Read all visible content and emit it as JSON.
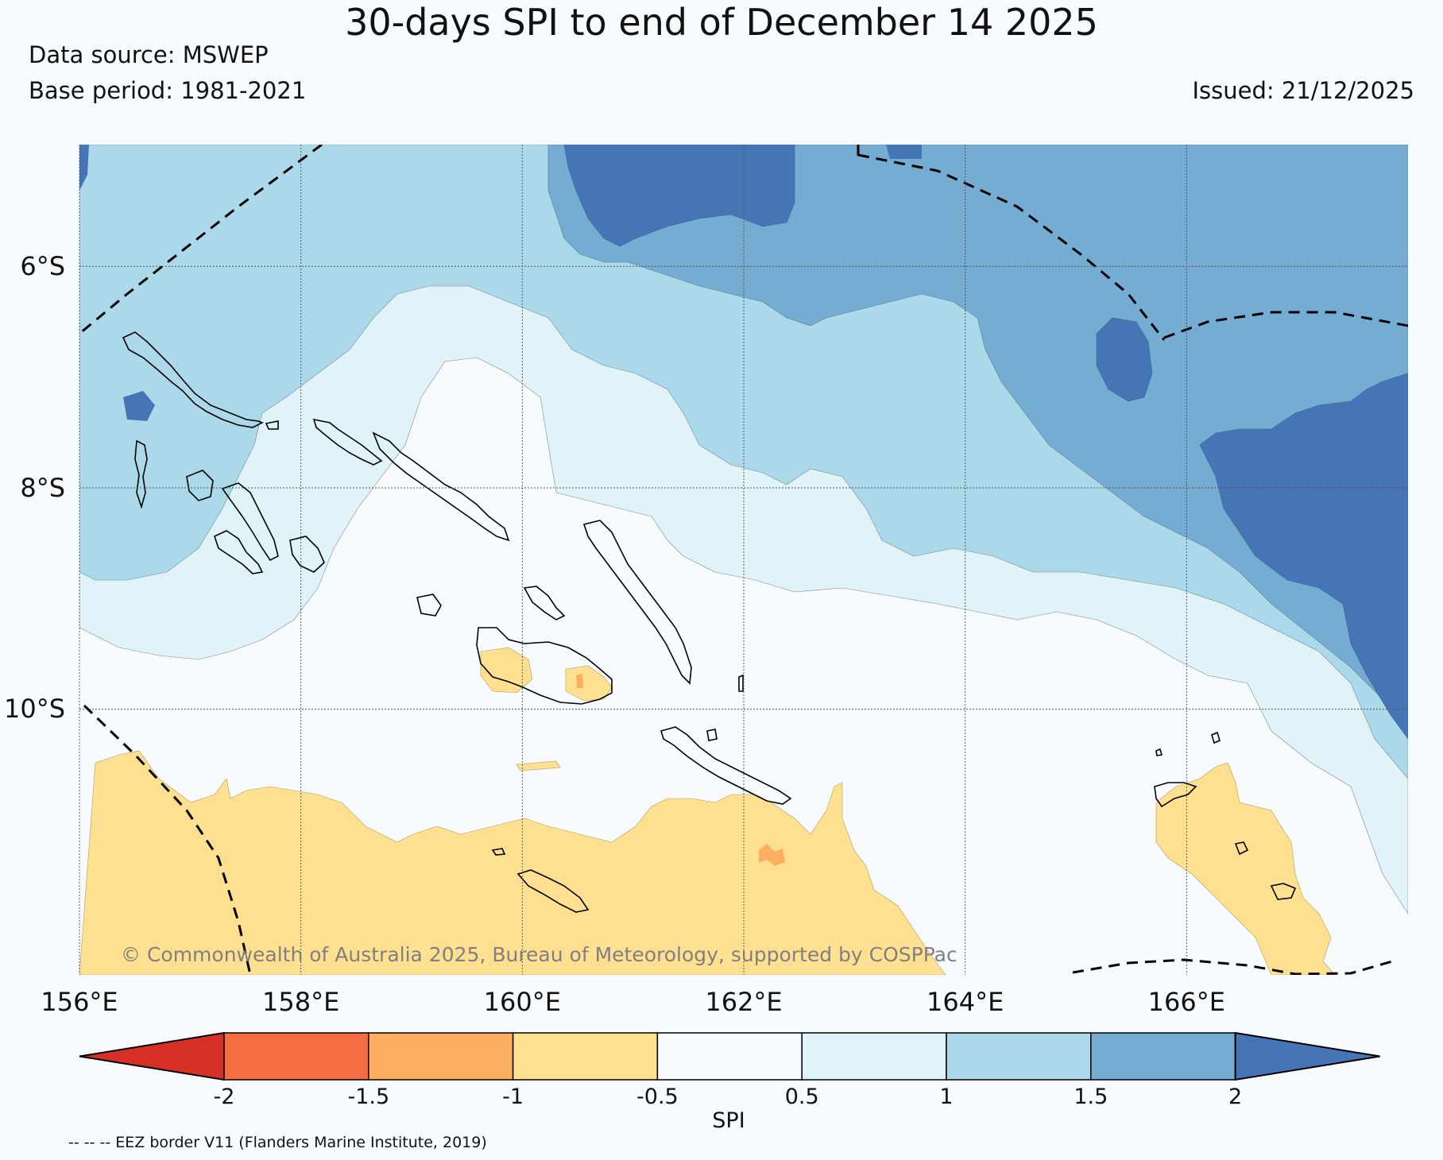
{
  "title": "30-days SPI to end of December 14 2025",
  "data_source": "Data source: MSWEP",
  "base_period": "Base period: 1981-2021",
  "issued": "Issued: 21/12/2025",
  "copyright": "© Commonwealth of Australia 2025, Bureau of Meteorology, supported by COSPPac",
  "eez_note": "-- -- -- EEZ border V11 (Flanders Marine Institute, 2019)",
  "map": {
    "lon_range": [
      156,
      168
    ],
    "lat_range": [
      -12.4,
      -4.9
    ],
    "lon_ticks": [
      "156°E",
      "158°E",
      "160°E",
      "162°E",
      "164°E",
      "166°E"
    ],
    "lat_ticks": [
      "6°S",
      "8°S",
      "10°S"
    ]
  },
  "colorbar": {
    "label": "SPI",
    "ticks": [
      "-2",
      "-1.5",
      "-1",
      "-0.5",
      "0.5",
      "1",
      "1.5",
      "2"
    ],
    "colors": [
      "#d73027",
      "#f46d43",
      "#fdae61",
      "#fee090",
      "#f7fbfd",
      "#e0f3f8",
      "#abd9e9",
      "#74add1",
      "#4575b4"
    ],
    "categories": [
      "< -2",
      "-2 to -1.5",
      "-1.5 to -1",
      "-1 to -0.5",
      "-0.5 to 0.5",
      "0.5 to 1",
      "1 to 1.5",
      "1.5 to 2",
      "> 2"
    ]
  },
  "colors": {
    "background": "#f7fbfd",
    "coast": "#000000",
    "eez": "#000000",
    "grid": "#555555"
  }
}
